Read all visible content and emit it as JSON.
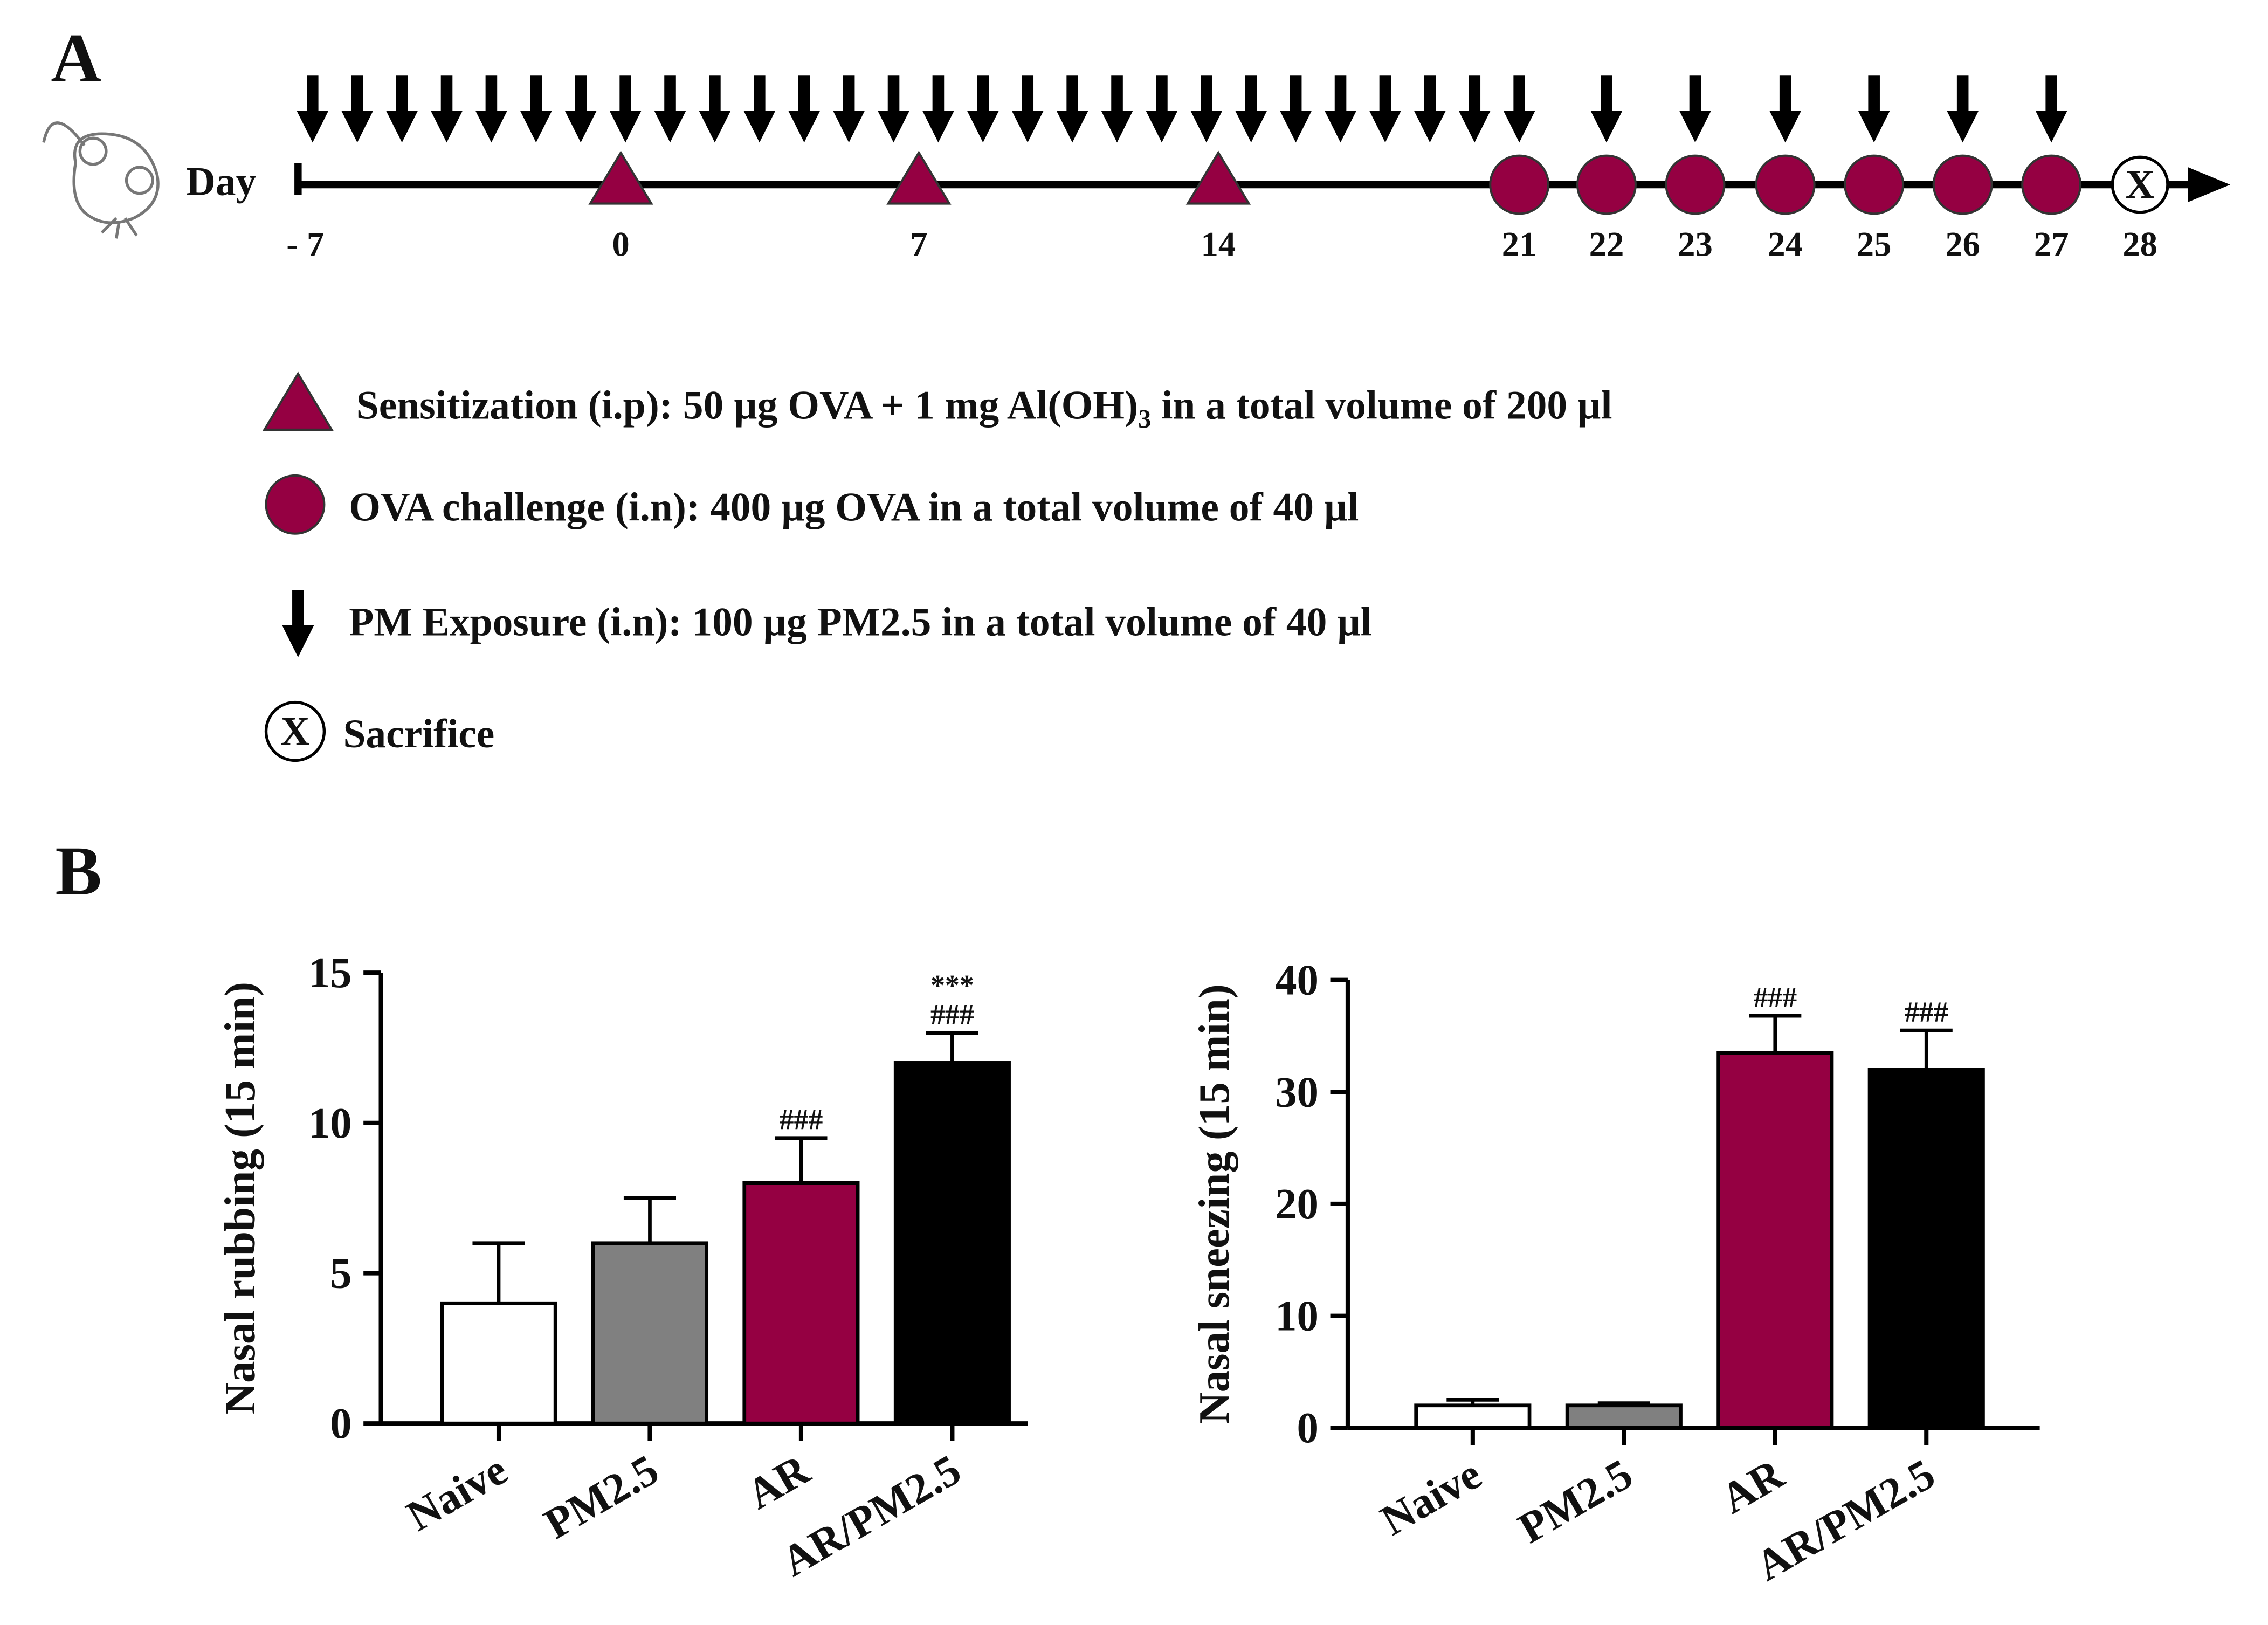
{
  "panel_a": {
    "label": "A",
    "day_axis_label": "Day",
    "days": [
      "- 7",
      "0",
      "7",
      "14",
      "21",
      "22",
      "23",
      "24",
      "25",
      "26",
      "27",
      "28"
    ],
    "legend": [
      {
        "parts": [
          "Sensitization (i.p): 50 µg OVA + 1 mg Al(OH)",
          "3",
          " in a total volume of 200 µl"
        ]
      },
      {
        "parts": [
          "OVA challenge (i.n): 400 µg OVA in a total volume of 40 µl"
        ]
      },
      {
        "parts": [
          "PM Exposure (i.n): 100 µg PM2.5 in a total volume of 40 µl"
        ]
      },
      {
        "parts": [
          "Sacrifice"
        ]
      }
    ]
  },
  "panel_b": {
    "label": "B"
  },
  "chart_data": [
    {
      "type": "bar",
      "y_label": "Nasal rubbing (15 min)",
      "categories": [
        "Naive",
        "PM2.5",
        "AR",
        "AR/PM2.5"
      ],
      "values": [
        4,
        6,
        8,
        12
      ],
      "errors": [
        2,
        1.5,
        1.5,
        1
      ],
      "colors": [
        "#ffffff",
        "#808080",
        "#950042",
        "#000000"
      ],
      "ylim": [
        0,
        15
      ],
      "yticks": [
        0,
        5,
        10,
        15
      ],
      "annotations": [
        {
          "category": "AR",
          "lines": [
            "###"
          ]
        },
        {
          "category": "AR/PM2.5",
          "lines": [
            "***",
            "###"
          ]
        }
      ]
    },
    {
      "type": "bar",
      "y_label": "Nasal sneezing (15 min)",
      "categories": [
        "Naive",
        "PM2.5",
        "AR",
        "AR/PM2.5"
      ],
      "values": [
        2,
        2,
        33.5,
        32
      ],
      "errors": [
        0.5,
        0.2,
        3.3,
        3.5
      ],
      "colors": [
        "#ffffff",
        "#808080",
        "#950042",
        "#000000"
      ],
      "ylim": [
        0,
        40
      ],
      "yticks": [
        0,
        10,
        20,
        30,
        40
      ],
      "annotations": [
        {
          "category": "AR",
          "lines": [
            "###"
          ]
        },
        {
          "category": "AR/PM2.5",
          "lines": [
            "###"
          ]
        }
      ]
    }
  ]
}
